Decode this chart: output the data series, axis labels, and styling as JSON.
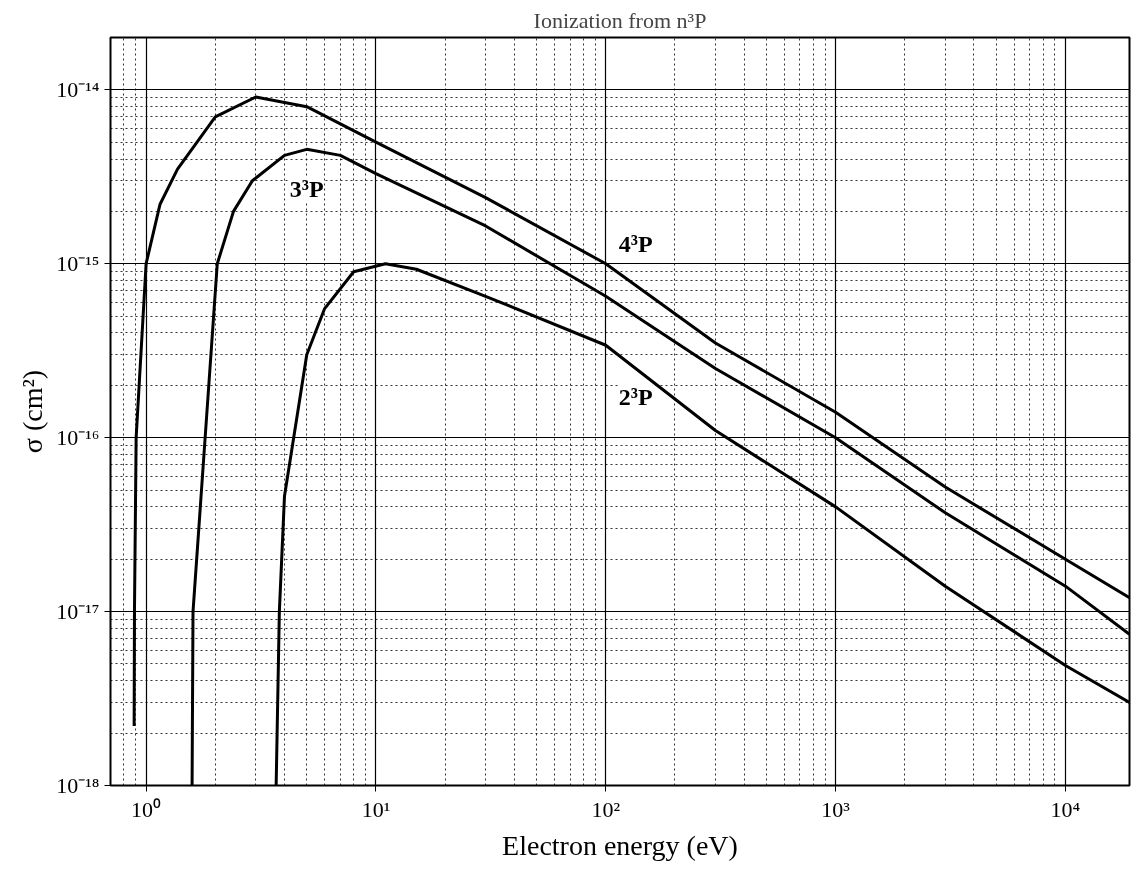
{
  "chart_data": {
    "type": "line",
    "title": "Ionization from n³P",
    "xlabel": "Electron energy (eV)",
    "ylabel": "σ (cm²)",
    "log": "xy",
    "grid": true,
    "legend": false,
    "line_style": "solid",
    "marker": "none",
    "xlim": [
      0.7,
      19000
    ],
    "ylim": [
      1e-18,
      2e-14
    ],
    "xticks": [
      {
        "value": 1,
        "label": "10⁰"
      },
      {
        "value": 10,
        "label": "10¹"
      },
      {
        "value": 100,
        "label": "10²"
      },
      {
        "value": 1000,
        "label": "10³"
      },
      {
        "value": 10000,
        "label": "10⁴"
      }
    ],
    "yticks": [
      {
        "value": 1e-18,
        "label": "10⁻¹⁸"
      },
      {
        "value": 1e-17,
        "label": "10⁻¹⁷"
      },
      {
        "value": 1e-16,
        "label": "10⁻¹⁶"
      },
      {
        "value": 1e-15,
        "label": "10⁻¹⁵"
      },
      {
        "value": 1e-14,
        "label": "10⁻¹⁴"
      }
    ],
    "series": [
      {
        "name": "4³P",
        "color": "#000000",
        "x": [
          0.887,
          0.89,
          0.905,
          1.0,
          1.15,
          1.37,
          2.0,
          3.0,
          5.0,
          10,
          30,
          100,
          300,
          1000,
          3000,
          10000,
          19000
        ],
        "values": [
          2.2e-18,
          1e-17,
          1e-16,
          1e-15,
          2.2e-15,
          3.5e-15,
          7e-15,
          9.1e-15,
          8e-15,
          5e-15,
          2.4e-15,
          1e-15,
          3.5e-16,
          1.4e-16,
          5.2e-17,
          2e-17,
          1.2e-17
        ]
      },
      {
        "name": "3³P",
        "color": "#000000",
        "x": [
          1.585,
          1.6,
          2.04,
          2.4,
          2.9,
          4.0,
          5.0,
          7.0,
          10,
          30,
          100,
          300,
          1000,
          3000,
          10000,
          19000
        ],
        "values": [
          1e-18,
          1e-17,
          1e-15,
          2e-15,
          3e-15,
          4.2e-15,
          4.55e-15,
          4.2e-15,
          3.3e-15,
          1.65e-15,
          6.5e-16,
          2.5e-16,
          1e-16,
          3.7e-17,
          1.4e-17,
          7.4e-18
        ]
      },
      {
        "name": "2³P",
        "color": "#000000",
        "x": [
          3.68,
          3.8,
          4.0,
          5.0,
          5.97,
          8.0,
          11,
          15,
          30,
          100,
          300,
          1000,
          3000,
          10000,
          19000
        ],
        "values": [
          1e-18,
          1e-17,
          4.6e-17,
          3e-16,
          5.5e-16,
          9e-16,
          1e-15,
          9.3e-16,
          6.5e-16,
          3.4e-16,
          1.1e-16,
          4e-17,
          1.4e-17,
          4.9e-18,
          3e-18
        ]
      }
    ]
  }
}
